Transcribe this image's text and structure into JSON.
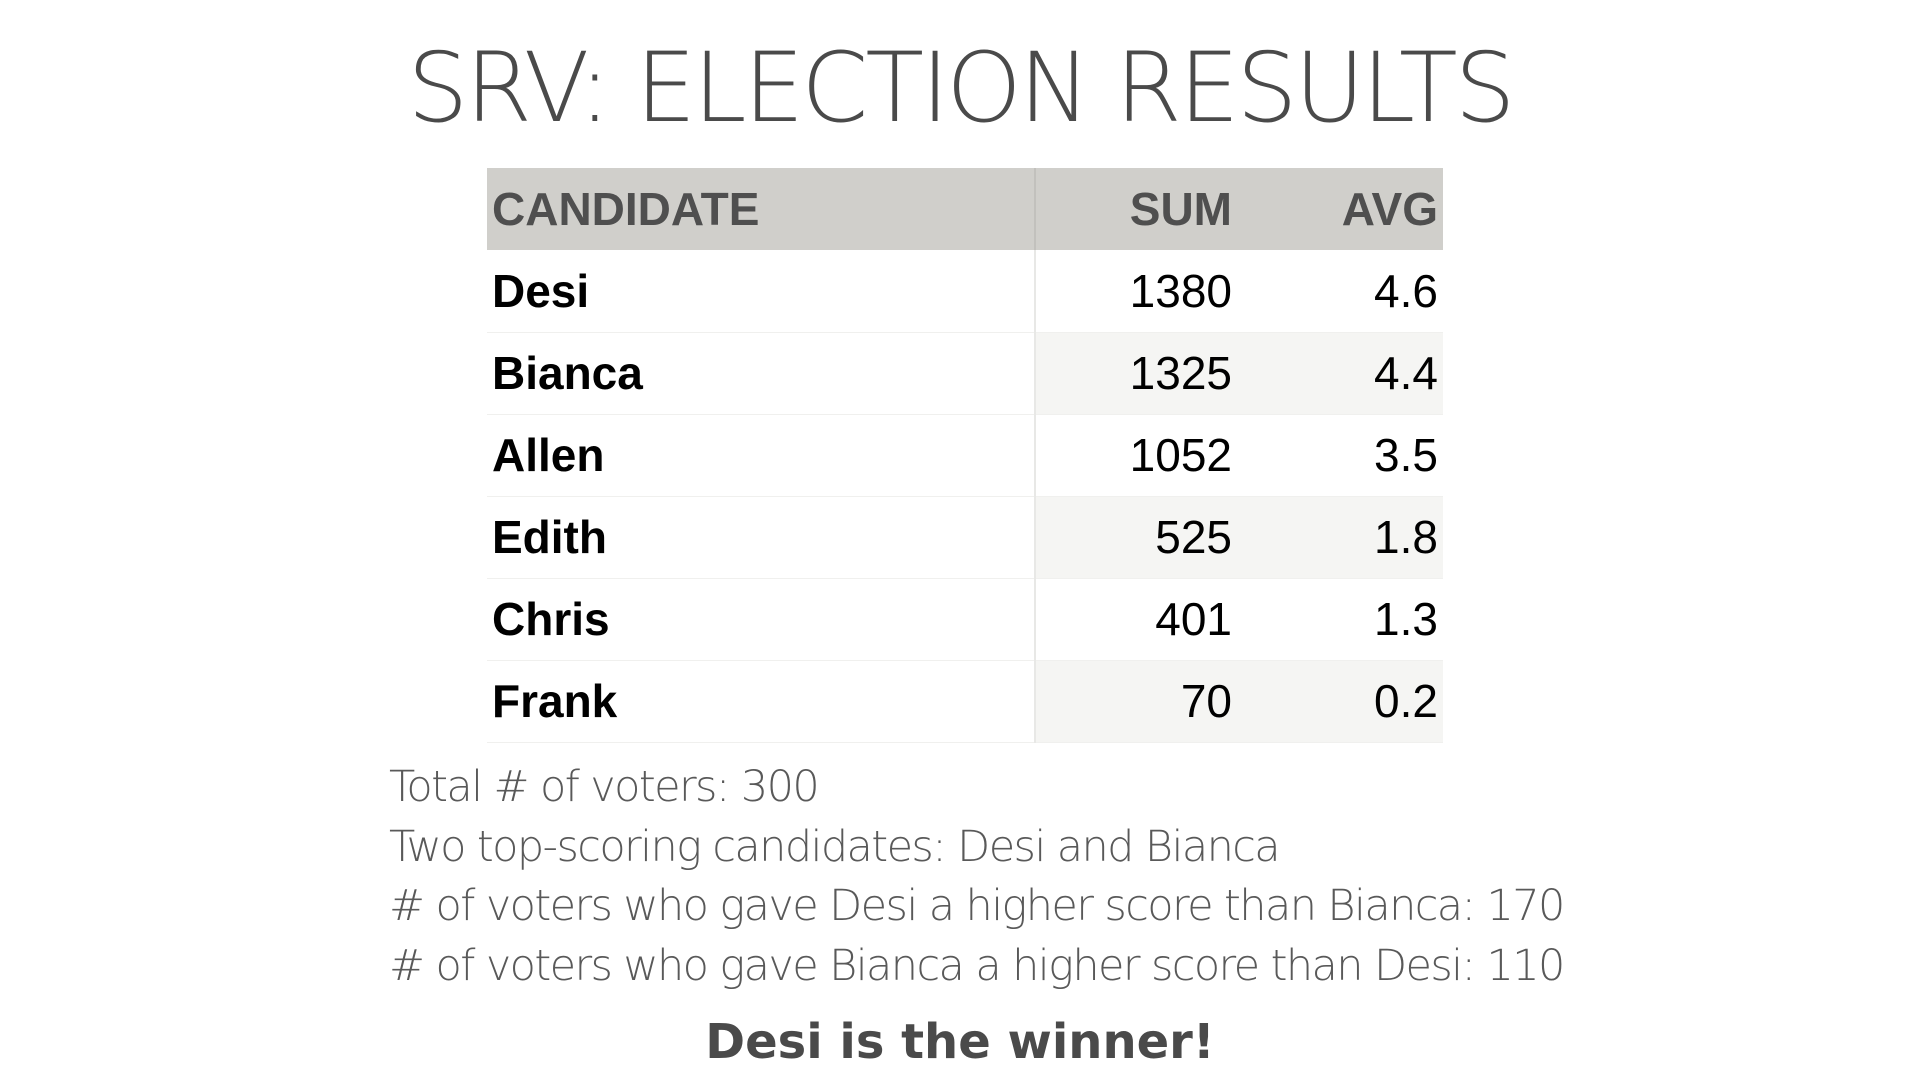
{
  "title": "SRV: ELECTION RESULTS",
  "table": {
    "headers": {
      "candidate": "CANDIDATE",
      "sum": "SUM",
      "avg": "AVG"
    },
    "rows": [
      {
        "name": "Desi",
        "sum": "1380",
        "avg": "4.6"
      },
      {
        "name": "Bianca",
        "sum": "1325",
        "avg": "4.4"
      },
      {
        "name": "Allen",
        "sum": "1052",
        "avg": "3.5"
      },
      {
        "name": "Edith",
        "sum": "525",
        "avg": "1.8"
      },
      {
        "name": "Chris",
        "sum": "401",
        "avg": "1.3"
      },
      {
        "name": "Frank",
        "sum": "70",
        "avg": "0.2"
      }
    ]
  },
  "notes": [
    "Total # of voters: 300",
    "Two top-scoring candidates: Desi and Bianca",
    "# of voters who gave Desi a higher score than Bianca: 170",
    "# of voters who gave Bianca a higher score than Desi: 110"
  ],
  "winner": "Desi is the winner!",
  "colors": {
    "header_background": "#d0cfcb",
    "title_text": "#4a4a4a",
    "striped_row": "#f5f5f3"
  }
}
